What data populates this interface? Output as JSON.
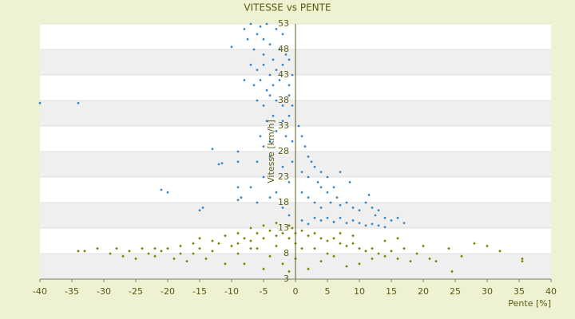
{
  "chart_data": {
    "type": "scatter",
    "title": "VITESSE vs PENTE",
    "x_label": "Pente [%]",
    "y_label": "Vitesse [km/h]",
    "xlim": [
      -40,
      40
    ],
    "xticks": [
      -40,
      -35,
      -30,
      -25,
      -20,
      -15,
      -10,
      -5,
      0,
      5,
      10,
      15,
      20,
      25,
      30,
      35,
      40
    ],
    "ylim": [
      3,
      53
    ],
    "yticks": [
      3,
      8,
      13,
      18,
      23,
      28,
      33,
      38,
      43,
      48,
      53
    ],
    "grid": true,
    "series": [
      {
        "color": "#3a87c8",
        "marker": "circle",
        "x": [
          -40,
          -34,
          -21,
          -20,
          -15,
          -14.5,
          -13,
          -12,
          -11.5,
          -10,
          -9,
          -9,
          -9,
          -8.5,
          -9,
          -8,
          -7.5,
          -7,
          -6,
          -5.5,
          -5,
          -4.5,
          -3,
          -2,
          -6.5,
          -5,
          -4,
          -3.5,
          -2.5,
          -1.5,
          -7,
          -6,
          -5,
          -4,
          -3,
          -2,
          -1,
          -8,
          -6.5,
          -5.5,
          -4.5,
          -3.5,
          -2.5,
          -1,
          -0.5,
          -6,
          -5,
          -4,
          -3,
          -2,
          -1,
          -0.5,
          -4.5,
          -3.5,
          -2,
          -1,
          -5.5,
          -5,
          -4,
          -3,
          -1.5,
          -0.5,
          -6,
          -4,
          -2,
          -0.5,
          -7,
          -5,
          -3,
          -1,
          -6,
          -4,
          -2,
          -1,
          0.5,
          1,
          1.5,
          2,
          2.5,
          1,
          2,
          3,
          3.5,
          4,
          5,
          4,
          5,
          6,
          1,
          2,
          3,
          4,
          5.5,
          6.5,
          7,
          8,
          9,
          10,
          11,
          11.5,
          12,
          12.5,
          13,
          14,
          15,
          16,
          17,
          3,
          4,
          5,
          6,
          7,
          8,
          9,
          10,
          11,
          12,
          13,
          14,
          2,
          1,
          8.5,
          7
        ],
        "values": [
          37.5,
          37.5,
          20.5,
          20,
          16.5,
          17,
          28.5,
          25.5,
          25.7,
          48.5,
          26,
          28,
          21,
          19,
          18.5,
          52,
          50,
          53,
          51,
          52.5,
          50,
          53,
          52,
          51,
          48,
          47,
          49,
          46,
          48,
          47,
          45,
          44,
          45,
          43,
          44,
          45,
          46,
          42,
          41,
          42,
          40,
          41,
          42,
          41,
          43,
          38,
          37,
          39,
          38,
          37,
          39,
          37,
          34,
          35,
          34,
          35,
          31,
          29,
          30,
          32,
          31,
          30,
          26,
          27,
          25,
          26,
          21,
          23,
          20,
          22,
          18,
          19,
          17,
          15.5,
          33,
          31,
          29,
          27,
          26,
          24,
          23,
          25,
          22,
          24,
          23,
          21,
          20,
          21,
          20,
          19,
          18,
          17,
          18,
          19,
          17.5,
          18,
          17,
          16.5,
          18,
          19.5,
          17,
          15.5,
          16.5,
          15,
          14.5,
          15,
          14,
          15,
          14.5,
          15,
          14.2,
          15,
          14,
          14.5,
          14,
          13.5,
          13.8,
          13.5,
          13.2,
          13.8,
          14.5,
          22,
          24
        ]
      },
      {
        "color": "#808000",
        "marker": "diamond",
        "x": [
          -34,
          -33,
          -31,
          -29,
          -28,
          -27,
          -26,
          -25,
          -24,
          -23,
          -22,
          -21,
          -20,
          -19,
          -18,
          -17,
          -16,
          -15,
          -14,
          -13,
          -12,
          -11,
          -10,
          -9,
          -8,
          -7,
          -6,
          -5,
          -4,
          -3,
          -2,
          -1,
          -0.5,
          -6,
          -4,
          -3,
          -2,
          -8,
          -5,
          -1,
          -9,
          -7,
          -5,
          -3,
          -1,
          1,
          2,
          3,
          4,
          5,
          6,
          7,
          8,
          9,
          10,
          11,
          12,
          13,
          14,
          15,
          16,
          17,
          18,
          19,
          20,
          21,
          22,
          24,
          26,
          28,
          30,
          32,
          35.5,
          35.5,
          24.5,
          2,
          4,
          6,
          8,
          10,
          12,
          3,
          5,
          7,
          9,
          1,
          0,
          0,
          0,
          -13,
          -15,
          -11,
          -9,
          -7,
          -18,
          -22,
          -16,
          14,
          16
        ],
        "values": [
          8.5,
          8.5,
          9,
          8,
          9,
          7.5,
          8.5,
          7,
          9,
          8,
          7.5,
          8.5,
          9,
          7,
          8,
          6.5,
          8,
          9,
          7,
          8.5,
          10,
          6,
          9.5,
          8,
          11,
          10.5,
          12,
          11,
          12.5,
          11.5,
          12,
          11,
          13,
          9,
          7.5,
          9.5,
          6,
          6,
          5,
          4.5,
          12,
          13,
          13.5,
          14,
          13.5,
          12.5,
          11.5,
          12,
          11,
          10.5,
          11,
          10,
          9.5,
          10,
          9,
          8.5,
          9,
          8,
          7.5,
          8.5,
          7,
          9,
          6.5,
          8,
          9.5,
          7,
          6.5,
          9,
          7.5,
          10,
          9.5,
          8.5,
          7,
          6.5,
          4.5,
          5,
          6.5,
          7.5,
          5.5,
          6,
          7,
          9,
          8,
          12,
          11.5,
          9,
          7,
          10,
          12,
          10.5,
          11,
          11.5,
          10,
          9,
          9.5,
          9,
          10,
          10.5,
          11
        ]
      }
    ]
  }
}
